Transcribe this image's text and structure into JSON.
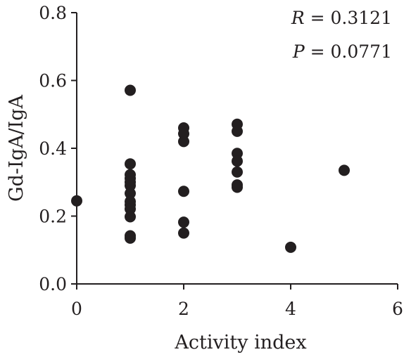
{
  "chart_data": {
    "type": "scatter",
    "xlabel": "Activity index",
    "ylabel": "Gd-IgA/IgA",
    "xlim": [
      0,
      6
    ],
    "ylim": [
      0,
      0.8
    ],
    "xticks": [
      0,
      2,
      4,
      6
    ],
    "yticks": [
      0.0,
      0.2,
      0.4,
      0.6,
      0.8
    ],
    "xtick_labels": [
      "0",
      "2",
      "4",
      "6"
    ],
    "ytick_labels": [
      "0.0",
      "0.2",
      "0.4",
      "0.6",
      "0.8"
    ],
    "grid": false,
    "annotations": {
      "r_var": "R",
      "r_rest": " = 0.3121",
      "p_var": "P",
      "p_rest": " = 0.0771"
    },
    "marker_color": "#231f20",
    "points": [
      {
        "x": 0,
        "y": 0.245
      },
      {
        "x": 1,
        "y": 0.571
      },
      {
        "x": 1,
        "y": 0.354
      },
      {
        "x": 1,
        "y": 0.322
      },
      {
        "x": 1,
        "y": 0.311
      },
      {
        "x": 1,
        "y": 0.3
      },
      {
        "x": 1,
        "y": 0.29
      },
      {
        "x": 1,
        "y": 0.267
      },
      {
        "x": 1,
        "y": 0.243
      },
      {
        "x": 1,
        "y": 0.233
      },
      {
        "x": 1,
        "y": 0.221
      },
      {
        "x": 1,
        "y": 0.198
      },
      {
        "x": 1,
        "y": 0.142
      },
      {
        "x": 1,
        "y": 0.135
      },
      {
        "x": 2,
        "y": 0.46
      },
      {
        "x": 2,
        "y": 0.443
      },
      {
        "x": 2,
        "y": 0.42
      },
      {
        "x": 2,
        "y": 0.273
      },
      {
        "x": 2,
        "y": 0.182
      },
      {
        "x": 2,
        "y": 0.15
      },
      {
        "x": 3,
        "y": 0.471
      },
      {
        "x": 3,
        "y": 0.45
      },
      {
        "x": 3,
        "y": 0.385
      },
      {
        "x": 3,
        "y": 0.362
      },
      {
        "x": 3,
        "y": 0.33
      },
      {
        "x": 3,
        "y": 0.292
      },
      {
        "x": 3,
        "y": 0.285
      },
      {
        "x": 4,
        "y": 0.108
      },
      {
        "x": 5,
        "y": 0.335
      }
    ]
  }
}
